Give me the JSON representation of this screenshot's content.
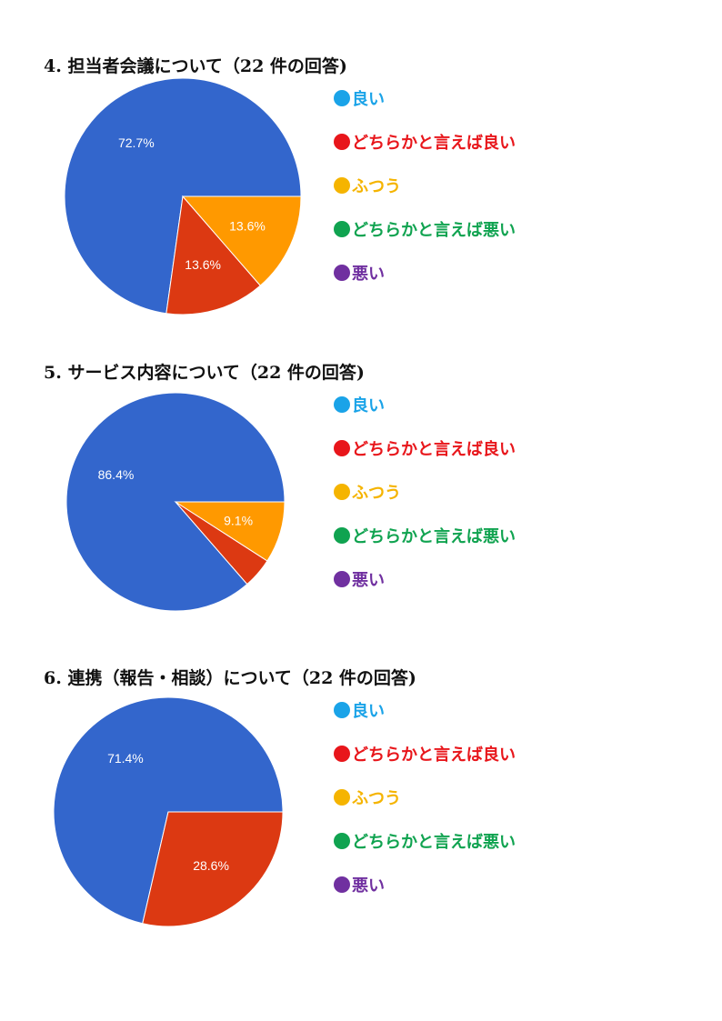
{
  "legend": [
    {
      "label": "良い",
      "color": "#1aa3e8"
    },
    {
      "label": "どちらかと言えば良い",
      "color": "#e8161b"
    },
    {
      "label": "ふつう",
      "color": "#f5b400"
    },
    {
      "label": "どちらかと言えば悪い",
      "color": "#10a350"
    },
    {
      "label": "悪い",
      "color": "#7030a0"
    }
  ],
  "chart_data": [
    {
      "type": "pie",
      "title": "4. 担当者会議について（22 件の回答)",
      "categories": [
        "良い",
        "どちらかと言えば良い",
        "ふつう",
        "どちらかと言えば悪い",
        "悪い"
      ],
      "values": [
        72.7,
        13.6,
        13.6,
        0,
        0
      ],
      "slice_labels": [
        "72.7%",
        "13.6%",
        "13.6%",
        "",
        ""
      ],
      "slice_colors": [
        "#3366cc",
        "#dc3912",
        "#ff9900",
        "#109618",
        "#990099"
      ],
      "legend_position": "right"
    },
    {
      "type": "pie",
      "title": "5. サービス内容について（22 件の回答)",
      "categories": [
        "良い",
        "どちらかと言えば良い",
        "ふつう",
        "どちらかと言えば悪い",
        "悪い"
      ],
      "values": [
        86.4,
        4.5,
        9.1,
        0,
        0
      ],
      "slice_labels": [
        "86.4%",
        "",
        "9.1%",
        "",
        ""
      ],
      "slice_colors": [
        "#3366cc",
        "#dc3912",
        "#ff9900",
        "#109618",
        "#990099"
      ],
      "legend_position": "right"
    },
    {
      "type": "pie",
      "title": "6. 連携（報告・相談）について（22 件の回答)",
      "categories": [
        "良い",
        "どちらかと言えば良い",
        "ふつう",
        "どちらかと言えば悪い",
        "悪い"
      ],
      "values": [
        71.4,
        28.6,
        0,
        0,
        0
      ],
      "slice_labels": [
        "71.4%",
        "28.6%",
        "",
        "",
        ""
      ],
      "slice_colors": [
        "#3366cc",
        "#dc3912",
        "#ff9900",
        "#109618",
        "#990099"
      ],
      "legend_position": "right"
    }
  ]
}
